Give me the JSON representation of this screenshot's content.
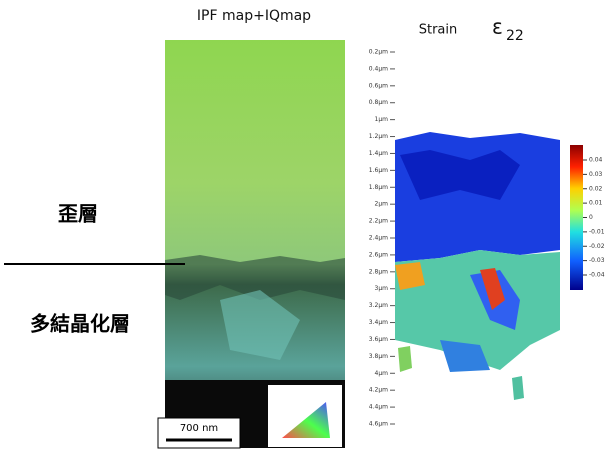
{
  "figure": {
    "left_panel": {
      "title": "IPF map+IQmap",
      "scale_bar": "700 nm"
    },
    "right_panel": {
      "title": "Strain",
      "symbol": "ε",
      "subscript": "22",
      "y_ticks": [
        "0.2μm",
        "0.4μm",
        "0.6μm",
        "0.8μm",
        "1μm",
        "1.2μm",
        "1.4μm",
        "1.6μm",
        "1.8μm",
        "2μm",
        "2.2μm",
        "2.4μm",
        "2.6μm",
        "2.8μm",
        "3μm",
        "3.2μm",
        "3.4μm",
        "3.6μm",
        "3.8μm",
        "4μm",
        "4.2μm",
        "4.4μm",
        "4.6μm"
      ],
      "colorbar_ticks": [
        "0.04",
        "0.03",
        "0.02",
        "0.01",
        "0",
        "-0.01",
        "-0.02",
        "-0.03",
        "-0.04"
      ]
    },
    "labels": {
      "strained_layer": "歪層",
      "polycrystalline_layer": "多結晶化層"
    }
  }
}
